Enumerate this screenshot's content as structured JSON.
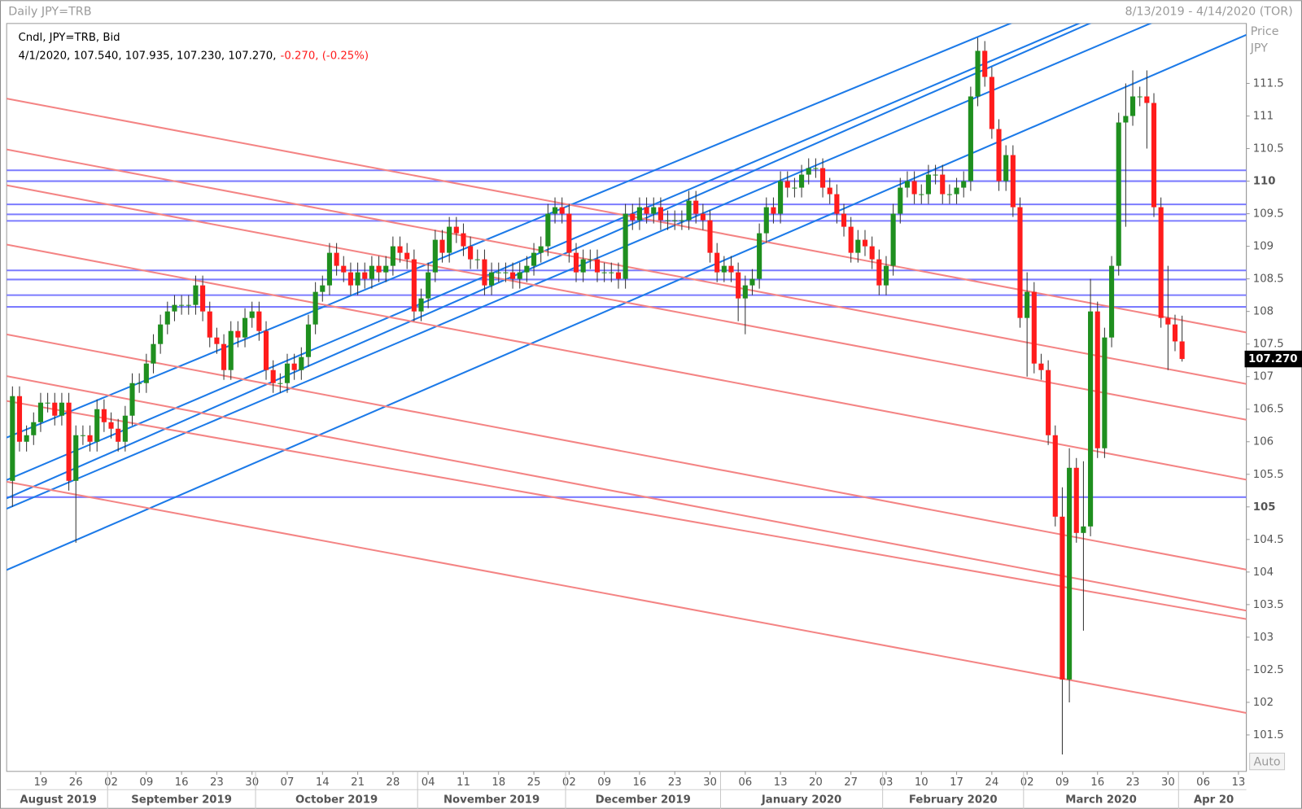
{
  "chart_data": {
    "type": "candlestick",
    "title": "Daily JPY=TRB",
    "date_range": "8/13/2019 - 4/14/2020 (TOR)",
    "legend_line1": "Cndl, JPY=TRB, Bid",
    "legend_ohlc": "4/1/2020, 107.540, 107.935, 107.230, 107.270,",
    "legend_change": "-0.270, (-0.25%)",
    "y_label_1": "Price",
    "y_label_2": "JPY",
    "auto_button": "Auto",
    "last_price": {
      "value": 107.27,
      "label": "107.270"
    },
    "up_color": "#1f8f1f",
    "down_color": "#ff1c1c",
    "xlim": [
      "2019-08-13",
      "2020-04-14"
    ],
    "ylim": [
      100.94,
      112.42
    ],
    "yticks": [
      101.5,
      102,
      102.5,
      103,
      103.5,
      104,
      104.5,
      105,
      105.5,
      106,
      106.5,
      107,
      107.5,
      108,
      108.5,
      109,
      109.5,
      110,
      110.5,
      111,
      111.5
    ],
    "yticks_bold": [
      105,
      110
    ],
    "xticks": [
      {
        "value": "2019-08-19",
        "label": "19"
      },
      {
        "value": "2019-08-26",
        "label": "26"
      },
      {
        "value": "2019-09-02",
        "label": "02"
      },
      {
        "value": "2019-09-09",
        "label": "09"
      },
      {
        "value": "2019-09-16",
        "label": "16"
      },
      {
        "value": "2019-09-23",
        "label": "23"
      },
      {
        "value": "2019-09-30",
        "label": "30"
      },
      {
        "value": "2019-10-07",
        "label": "07"
      },
      {
        "value": "2019-10-14",
        "label": "14"
      },
      {
        "value": "2019-10-21",
        "label": "21"
      },
      {
        "value": "2019-10-28",
        "label": "28"
      },
      {
        "value": "2019-11-04",
        "label": "04"
      },
      {
        "value": "2019-11-11",
        "label": "11"
      },
      {
        "value": "2019-11-18",
        "label": "18"
      },
      {
        "value": "2019-11-25",
        "label": "25"
      },
      {
        "value": "2019-12-02",
        "label": "02"
      },
      {
        "value": "2019-12-09",
        "label": "09"
      },
      {
        "value": "2019-12-16",
        "label": "16"
      },
      {
        "value": "2019-12-23",
        "label": "23"
      },
      {
        "value": "2019-12-30",
        "label": "30"
      },
      {
        "value": "2020-01-06",
        "label": "06"
      },
      {
        "value": "2020-01-13",
        "label": "13"
      },
      {
        "value": "2020-01-20",
        "label": "20"
      },
      {
        "value": "2020-01-27",
        "label": "27"
      },
      {
        "value": "2020-02-03",
        "label": "03"
      },
      {
        "value": "2020-02-10",
        "label": "10"
      },
      {
        "value": "2020-02-17",
        "label": "17"
      },
      {
        "value": "2020-02-24",
        "label": "24"
      },
      {
        "value": "2020-03-02",
        "label": "02"
      },
      {
        "value": "2020-03-09",
        "label": "09"
      },
      {
        "value": "2020-03-16",
        "label": "16"
      },
      {
        "value": "2020-03-23",
        "label": "23"
      },
      {
        "value": "2020-03-30",
        "label": "30"
      },
      {
        "value": "2020-04-06",
        "label": "06"
      },
      {
        "value": "2020-04-13",
        "label": "13"
      }
    ],
    "months": [
      {
        "value": "2019-08",
        "label": "August 2019"
      },
      {
        "value": "2019-09",
        "label": "September 2019"
      },
      {
        "value": "2019-10",
        "label": "October 2019"
      },
      {
        "value": "2019-11",
        "label": "November 2019"
      },
      {
        "value": "2019-12",
        "label": "December 2019"
      },
      {
        "value": "2020-01",
        "label": "January 2020"
      },
      {
        "value": "2020-02",
        "label": "February 2020"
      },
      {
        "value": "2020-03",
        "label": "March 2020"
      },
      {
        "value": "2020-04",
        "label": "Apr 20"
      }
    ],
    "open": [
      105.4,
      106.7,
      106.0,
      106.1,
      106.3,
      106.6,
      106.6,
      106.4,
      106.6,
      105.4,
      106.1,
      106.1,
      106.0,
      106.5,
      106.3,
      106.2,
      106.0,
      106.4,
      106.9,
      106.9,
      107.2,
      107.5,
      107.8,
      108.0,
      108.1,
      108.1,
      108.1,
      108.4,
      108.0,
      107.6,
      107.5,
      107.1,
      107.7,
      107.6,
      107.9,
      108.0,
      107.7,
      107.1,
      106.9,
      106.9,
      107.2,
      107.1,
      107.3,
      107.8,
      108.3,
      108.4,
      108.9,
      108.7,
      108.6,
      108.4,
      108.6,
      108.5,
      108.7,
      108.6,
      108.7,
      109.0,
      108.9,
      108.8,
      108.0,
      108.2,
      108.6,
      109.1,
      108.9,
      109.3,
      109.2,
      109.0,
      108.8,
      108.8,
      108.4,
      108.6,
      108.6,
      108.6,
      108.5,
      108.6,
      108.7,
      108.9,
      109.0,
      109.5,
      109.6,
      109.5,
      108.9,
      108.6,
      108.8,
      108.8,
      108.6,
      108.6,
      108.6,
      108.5,
      109.5,
      109.4,
      109.6,
      109.5,
      109.6,
      109.4,
      109.4,
      109.4,
      109.4,
      109.7,
      109.5,
      109.4,
      108.9,
      108.6,
      108.7,
      108.6,
      108.2,
      108.4,
      108.5,
      109.2,
      109.6,
      109.5,
      110.0,
      109.9,
      109.9,
      110.1,
      110.2,
      110.2,
      109.9,
      109.8,
      109.5,
      109.3,
      108.9,
      109.1,
      109.0,
      108.8,
      108.4,
      108.7,
      109.5,
      109.9,
      110.0,
      109.8,
      109.8,
      110.1,
      110.1,
      109.8,
      109.8,
      109.9,
      110.0,
      111.3,
      112.0,
      111.6,
      110.8,
      110.0,
      110.4,
      109.6,
      107.9,
      108.3,
      107.2,
      107.1,
      106.1,
      104.85,
      102.35,
      105.6,
      104.6,
      104.7,
      108.0,
      105.9,
      107.6,
      108.7,
      110.9,
      111.0,
      111.3,
      111.3,
      111.2,
      109.6,
      107.9,
      107.8,
      107.54
    ],
    "high": [
      106.85,
      106.85,
      106.25,
      106.45,
      106.75,
      106.75,
      106.75,
      106.75,
      106.75,
      106.25,
      106.25,
      106.25,
      106.65,
      106.65,
      106.45,
      106.35,
      106.55,
      107.05,
      107.05,
      107.35,
      107.65,
      107.95,
      108.15,
      108.25,
      108.25,
      108.25,
      108.55,
      108.55,
      108.15,
      107.75,
      107.65,
      107.85,
      107.85,
      108.05,
      108.15,
      108.15,
      107.85,
      107.25,
      107.05,
      107.35,
      107.35,
      107.45,
      107.95,
      108.45,
      108.55,
      109.05,
      109.05,
      108.85,
      108.75,
      108.75,
      108.75,
      108.85,
      108.85,
      108.85,
      109.15,
      109.15,
      109.05,
      108.95,
      108.35,
      108.75,
      109.25,
      109.25,
      109.45,
      109.45,
      109.35,
      109.15,
      108.95,
      108.95,
      108.75,
      108.75,
      108.75,
      108.75,
      108.75,
      108.85,
      109.05,
      109.15,
      109.65,
      109.75,
      109.75,
      109.65,
      109.05,
      108.95,
      108.95,
      108.95,
      108.75,
      108.75,
      108.75,
      109.65,
      109.65,
      109.75,
      109.75,
      109.75,
      109.75,
      109.55,
      109.55,
      109.55,
      109.85,
      109.85,
      109.65,
      109.55,
      109.05,
      108.85,
      108.85,
      108.75,
      108.55,
      108.65,
      109.35,
      109.75,
      109.75,
      110.15,
      110.15,
      110.05,
      110.25,
      110.35,
      110.35,
      110.35,
      110.05,
      109.95,
      109.65,
      109.45,
      109.25,
      109.25,
      109.15,
      108.95,
      108.85,
      109.65,
      110.05,
      110.15,
      110.15,
      109.95,
      110.25,
      110.25,
      110.25,
      109.95,
      110.05,
      110.15,
      111.45,
      112.2,
      112.15,
      111.75,
      110.95,
      110.55,
      110.55,
      109.75,
      108.6,
      108.45,
      107.35,
      107.25,
      106.25,
      105.3,
      105.9,
      105.75,
      105.7,
      108.5,
      108.15,
      107.75,
      108.85,
      111.05,
      111.5,
      111.7,
      111.45,
      111.7,
      111.35,
      109.75,
      108.7,
      107.95,
      107.935
    ],
    "low": [
      105.0,
      105.85,
      105.85,
      105.95,
      106.15,
      106.45,
      106.25,
      106.25,
      105.25,
      104.45,
      105.95,
      105.85,
      105.85,
      106.15,
      106.05,
      105.85,
      105.85,
      106.25,
      106.75,
      106.75,
      107.05,
      107.35,
      107.65,
      107.85,
      107.95,
      107.95,
      107.95,
      107.85,
      107.45,
      107.35,
      106.95,
      106.95,
      107.45,
      107.45,
      107.75,
      107.55,
      106.95,
      106.75,
      106.75,
      106.75,
      106.95,
      106.95,
      107.15,
      107.65,
      108.15,
      108.25,
      108.55,
      108.45,
      108.25,
      108.25,
      108.35,
      108.35,
      108.45,
      108.45,
      108.55,
      108.75,
      108.65,
      107.85,
      107.85,
      108.05,
      108.45,
      108.75,
      108.75,
      109.05,
      108.85,
      108.65,
      108.65,
      108.25,
      108.25,
      108.45,
      108.45,
      108.35,
      108.35,
      108.45,
      108.55,
      108.75,
      108.85,
      109.35,
      109.35,
      108.75,
      108.45,
      108.45,
      108.65,
      108.45,
      108.45,
      108.45,
      108.35,
      108.35,
      109.25,
      109.25,
      109.35,
      109.35,
      109.25,
      109.25,
      109.25,
      109.25,
      109.25,
      109.35,
      109.25,
      108.75,
      108.45,
      108.45,
      108.45,
      107.85,
      107.65,
      108.25,
      108.35,
      109.05,
      109.35,
      109.35,
      109.75,
      109.75,
      109.75,
      109.95,
      110.05,
      109.75,
      109.65,
      109.35,
      109.15,
      108.75,
      108.75,
      108.85,
      108.65,
      108.25,
      108.25,
      108.55,
      109.35,
      109.75,
      109.65,
      109.65,
      109.65,
      109.95,
      109.65,
      109.65,
      109.65,
      109.75,
      109.85,
      111.15,
      111.45,
      110.65,
      109.85,
      109.85,
      109.45,
      107.75,
      107.0,
      107.05,
      106.95,
      105.95,
      104.7,
      101.2,
      102.0,
      104.45,
      103.1,
      104.55,
      105.75,
      105.75,
      107.45,
      108.55,
      109.3,
      110.85,
      111.15,
      110.5,
      109.45,
      107.75,
      107.1,
      107.39,
      107.23
    ],
    "close": [
      106.7,
      106.0,
      106.1,
      106.3,
      106.6,
      106.6,
      106.4,
      106.6,
      105.4,
      106.1,
      106.1,
      106.0,
      106.5,
      106.3,
      106.2,
      106.0,
      106.4,
      106.9,
      106.9,
      107.2,
      107.5,
      107.8,
      108.0,
      108.1,
      108.1,
      108.1,
      108.4,
      108.0,
      107.6,
      107.5,
      107.1,
      107.7,
      107.6,
      107.9,
      108.0,
      107.7,
      107.1,
      106.9,
      106.9,
      107.2,
      107.1,
      107.3,
      107.8,
      108.3,
      108.4,
      108.9,
      108.7,
      108.6,
      108.4,
      108.6,
      108.5,
      108.7,
      108.6,
      108.7,
      109.0,
      108.9,
      108.8,
      108.0,
      108.2,
      108.6,
      109.1,
      108.9,
      109.3,
      109.2,
      109.0,
      108.8,
      108.8,
      108.4,
      108.6,
      108.6,
      108.6,
      108.5,
      108.6,
      108.7,
      108.9,
      109.0,
      109.5,
      109.6,
      109.5,
      108.9,
      108.6,
      108.8,
      108.8,
      108.6,
      108.6,
      108.6,
      108.5,
      109.5,
      109.4,
      109.6,
      109.5,
      109.6,
      109.4,
      109.4,
      109.4,
      109.4,
      109.7,
      109.5,
      109.4,
      108.9,
      108.6,
      108.7,
      108.6,
      108.2,
      108.4,
      108.5,
      109.2,
      109.6,
      109.5,
      110.0,
      109.9,
      109.9,
      110.1,
      110.2,
      110.2,
      109.9,
      109.8,
      109.5,
      109.3,
      108.9,
      109.1,
      109.0,
      108.8,
      108.4,
      108.7,
      109.5,
      109.9,
      110.0,
      109.8,
      109.8,
      110.1,
      110.1,
      109.8,
      109.8,
      109.9,
      110.0,
      111.3,
      112.0,
      111.6,
      110.8,
      110.0,
      110.4,
      109.6,
      107.9,
      108.3,
      107.2,
      107.1,
      106.1,
      104.85,
      102.35,
      105.6,
      104.6,
      104.7,
      108.0,
      105.9,
      107.6,
      108.7,
      110.9,
      111.0,
      111.3,
      111.3,
      111.2,
      109.6,
      107.9,
      107.8,
      107.54,
      107.27
    ],
    "levels": {
      "color": "#7c7cff",
      "values": [
        110.166,
        110,
        109.643,
        109.49,
        109.39,
        108.63,
        108.49,
        108.25,
        108.07,
        105.15
      ]
    },
    "trendlines": [
      {
        "color": "#1c7ae8",
        "start": [
          "2019-08-13",
          106.1
        ],
        "end": [
          "2020-04-14",
          113.91
        ]
      },
      {
        "color": "#1c7ae8",
        "start": [
          "2019-08-13",
          105.45
        ],
        "end": [
          "2020-04-14",
          113.51
        ]
      },
      {
        "color": "#1c7ae8",
        "start": [
          "2019-08-13",
          105.17
        ],
        "end": [
          "2020-04-14",
          113.47
        ]
      },
      {
        "color": "#1c7ae8",
        "start": [
          "2019-08-13",
          105.01
        ],
        "end": [
          "2020-04-14",
          113.04
        ]
      },
      {
        "color": "#1c7ae8",
        "start": [
          "2019-08-13",
          104.07
        ],
        "end": [
          "2020-04-14",
          112.24
        ]
      },
      {
        "color": "#f48484",
        "start": [
          "2019-08-13",
          111.25
        ],
        "end": [
          "2020-04-14",
          107.68
        ]
      },
      {
        "color": "#f48484",
        "start": [
          "2019-08-13",
          110.47
        ],
        "end": [
          "2020-04-14",
          106.89
        ]
      },
      {
        "color": "#f48484",
        "start": [
          "2019-08-13",
          109.92
        ],
        "end": [
          "2020-04-14",
          106.34
        ]
      },
      {
        "color": "#f48484",
        "start": [
          "2019-08-13",
          109.01
        ],
        "end": [
          "2020-04-14",
          105.42
        ]
      },
      {
        "color": "#f48484",
        "start": [
          "2019-08-13",
          107.63
        ],
        "end": [
          "2020-04-14",
          104.04
        ]
      },
      {
        "color": "#f48484",
        "start": [
          "2019-08-13",
          106.99
        ],
        "end": [
          "2020-04-14",
          103.41
        ]
      },
      {
        "color": "#f48484",
        "start": [
          "2019-08-13",
          106.61
        ],
        "end": [
          "2020-04-14",
          103.28
        ]
      },
      {
        "color": "#f48484",
        "start": [
          "2019-08-13",
          105.37
        ],
        "end": [
          "2020-04-14",
          101.84
        ]
      }
    ]
  }
}
